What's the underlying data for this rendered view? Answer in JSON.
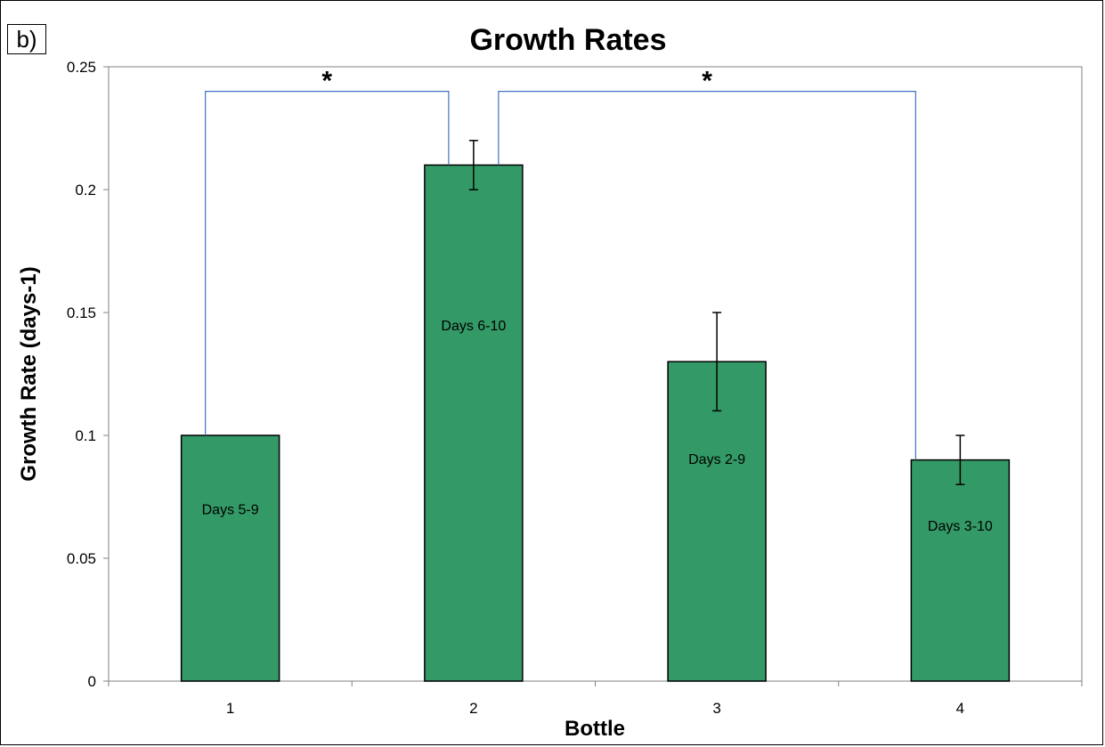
{
  "panel_label": "b)",
  "chart_data": {
    "type": "bar",
    "title": "Growth Rates",
    "xlabel": "Bottle",
    "ylabel": "Growth Rate (days-1)",
    "categories": [
      "1",
      "2",
      "3",
      "4"
    ],
    "values": [
      0.1,
      0.21,
      0.13,
      0.09
    ],
    "error": [
      0.0,
      0.01,
      0.02,
      0.01
    ],
    "bar_labels": [
      "Days  5-9",
      "Days  6-10",
      "Days 2-9",
      "Days 3-10"
    ],
    "ylim": [
      0,
      0.25
    ],
    "yticks": [
      0,
      0.05,
      0.1,
      0.15,
      0.2,
      0.25
    ],
    "ytick_labels": [
      "0",
      "0.05",
      "0.1",
      "0.15",
      "0.2",
      "0.25"
    ],
    "bar_color": "#339966",
    "bracket_color": "#4472c4",
    "significance": [
      {
        "from": "1",
        "to": "2",
        "label": "*"
      },
      {
        "from": "2",
        "to": "4",
        "label": "*"
      }
    ],
    "grid": false,
    "legend": "none"
  }
}
